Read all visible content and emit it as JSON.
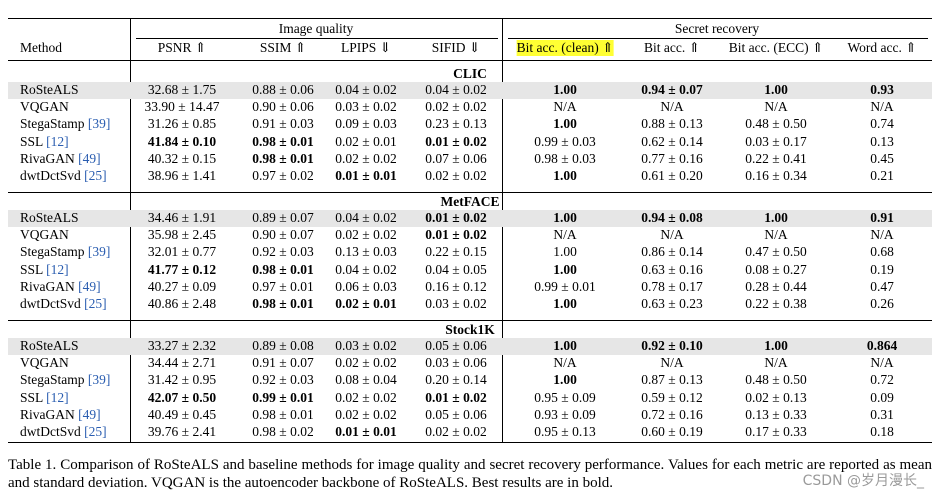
{
  "table": {
    "groups": [
      "Image quality",
      "Secret recovery"
    ],
    "columns": [
      {
        "text": "Method"
      },
      {
        "text": "PSNR ⇑"
      },
      {
        "text": "SSIM ⇑"
      },
      {
        "text": "LPIPS ⇓"
      },
      {
        "text": "SIFID ⇓"
      },
      {
        "text": "Bit acc. (clean) ⇑",
        "highlight": true
      },
      {
        "text": "Bit acc. ⇑"
      },
      {
        "text": "Bit acc. (ECC) ⇑"
      },
      {
        "text": "Word acc. ⇑"
      }
    ],
    "sections": [
      {
        "title": "CLIC",
        "rows": [
          {
            "method": "RoSteALS",
            "shaded": true,
            "values": [
              "32.68 ± 1.75",
              "0.88 ± 0.06",
              "0.04 ± 0.02",
              "0.04 ± 0.02",
              "1.00",
              "0.94 ± 0.07",
              "1.00",
              "0.93"
            ],
            "bold": [
              4,
              5,
              6,
              7
            ]
          },
          {
            "method": "VQGAN",
            "values": [
              "33.90 ± 14.47",
              "0.90 ± 0.06",
              "0.03 ± 0.02",
              "0.02 ± 0.02",
              "N/A",
              "N/A",
              "N/A",
              "N/A"
            ],
            "bold": []
          },
          {
            "method": "StegaStamp",
            "cite": "[39]",
            "values": [
              "31.26 ± 0.85",
              "0.91 ± 0.03",
              "0.09 ± 0.03",
              "0.23 ± 0.13",
              "1.00",
              "0.88 ± 0.13",
              "0.48 ± 0.50",
              "0.74"
            ],
            "bold": [
              4
            ]
          },
          {
            "method": "SSL",
            "cite": "[12]",
            "values": [
              "41.84 ± 0.10",
              "0.98 ± 0.01",
              "0.02 ± 0.01",
              "0.01 ± 0.02",
              "0.99 ± 0.03",
              "0.62 ± 0.14",
              "0.03 ± 0.17",
              "0.13"
            ],
            "bold": [
              0,
              1,
              3
            ]
          },
          {
            "method": "RivaGAN",
            "cite": "[49]",
            "values": [
              "40.32 ± 0.15",
              "0.98 ± 0.01",
              "0.02 ± 0.02",
              "0.07 ± 0.06",
              "0.98 ± 0.03",
              "0.77 ± 0.16",
              "0.22 ± 0.41",
              "0.45"
            ],
            "bold": [
              1
            ]
          },
          {
            "method": "dwtDctSvd",
            "cite": "[25]",
            "values": [
              "38.96 ± 1.41",
              "0.97 ± 0.02",
              "0.01 ± 0.01",
              "0.02 ± 0.02",
              "1.00",
              "0.61 ± 0.20",
              "0.16 ± 0.34",
              "0.21"
            ],
            "bold": [
              2,
              4
            ]
          }
        ]
      },
      {
        "title": "MetFACE",
        "rows": [
          {
            "method": "RoSteALS",
            "shaded": true,
            "values": [
              "34.46 ± 1.91",
              "0.89 ± 0.07",
              "0.04 ± 0.02",
              "0.01 ± 0.02",
              "1.00",
              "0.94 ± 0.08",
              "1.00",
              "0.91"
            ],
            "bold": [
              3,
              4,
              5,
              6,
              7
            ]
          },
          {
            "method": "VQGAN",
            "values": [
              "35.98 ± 2.45",
              "0.90 ± 0.07",
              "0.02 ± 0.02",
              "0.01 ± 0.02",
              "N/A",
              "N/A",
              "N/A",
              "N/A"
            ],
            "bold": [
              3
            ]
          },
          {
            "method": "StegaStamp",
            "cite": "[39]",
            "values": [
              "32.01 ± 0.77",
              "0.92 ± 0.03",
              "0.13 ± 0.03",
              "0.22 ± 0.15",
              "1.00",
              "0.86 ± 0.14",
              "0.47 ± 0.50",
              "0.68"
            ],
            "bold": []
          },
          {
            "method": "SSL",
            "cite": "[12]",
            "values": [
              "41.77 ± 0.12",
              "0.98 ± 0.01",
              "0.04 ± 0.02",
              "0.04 ± 0.05",
              "1.00",
              "0.63 ± 0.16",
              "0.08 ± 0.27",
              "0.19"
            ],
            "bold": [
              0,
              1,
              4
            ]
          },
          {
            "method": "RivaGAN",
            "cite": "[49]",
            "values": [
              "40.27 ± 0.09",
              "0.97 ± 0.01",
              "0.06 ± 0.03",
              "0.16 ± 0.12",
              "0.99 ± 0.01",
              "0.78 ± 0.17",
              "0.28 ± 0.44",
              "0.47"
            ],
            "bold": []
          },
          {
            "method": "dwtDctSvd",
            "cite": "[25]",
            "values": [
              "40.86 ± 2.48",
              "0.98 ± 0.01",
              "0.02 ± 0.01",
              "0.03 ± 0.02",
              "1.00",
              "0.63 ± 0.23",
              "0.22 ± 0.38",
              "0.26"
            ],
            "bold": [
              1,
              2,
              4
            ]
          }
        ]
      },
      {
        "title": "Stock1K",
        "rows": [
          {
            "method": "RoSteALS",
            "shaded": true,
            "values": [
              "33.27 ± 2.32",
              "0.89 ± 0.08",
              "0.03 ± 0.02",
              "0.05 ± 0.06",
              "1.00",
              "0.92 ± 0.10",
              "1.00",
              "0.864"
            ],
            "bold": [
              4,
              5,
              6,
              7
            ]
          },
          {
            "method": "VQGAN",
            "values": [
              "34.44 ± 2.71",
              "0.91 ± 0.07",
              "0.02 ± 0.02",
              "0.03 ± 0.06",
              "N/A",
              "N/A",
              "N/A",
              "N/A"
            ],
            "bold": []
          },
          {
            "method": "StegaStamp",
            "cite": "[39]",
            "values": [
              "31.42 ± 0.95",
              "0.92 ± 0.03",
              "0.08 ± 0.04",
              "0.20 ± 0.14",
              "1.00",
              "0.87 ± 0.13",
              "0.48 ± 0.50",
              "0.72"
            ],
            "bold": [
              4
            ]
          },
          {
            "method": "SSL",
            "cite": "[12]",
            "values": [
              "42.07 ± 0.50",
              "0.99 ± 0.01",
              "0.02 ± 0.02",
              "0.01 ± 0.02",
              "0.95 ± 0.09",
              "0.59 ± 0.12",
              "0.02 ± 0.13",
              "0.09"
            ],
            "bold": [
              0,
              1,
              3
            ]
          },
          {
            "method": "RivaGAN",
            "cite": "[49]",
            "values": [
              "40.49 ± 0.45",
              "0.98 ± 0.01",
              "0.02 ± 0.02",
              "0.05 ± 0.06",
              "0.93 ± 0.09",
              "0.72 ± 0.16",
              "0.13 ± 0.33",
              "0.31"
            ],
            "bold": []
          },
          {
            "method": "dwtDctSvd",
            "cite": "[25]",
            "values": [
              "39.76 ± 2.41",
              "0.98 ± 0.02",
              "0.01 ± 0.01",
              "0.02 ± 0.02",
              "0.95 ± 0.13",
              "0.60 ± 0.19",
              "0.17 ± 0.33",
              "0.18"
            ],
            "bold": [
              2
            ]
          }
        ]
      }
    ]
  },
  "caption": "Table 1. Comparison of RoSteALS and baseline methods for image quality and secret recovery performance. Values for each metric are reported as mean and standard deviation. VQGAN is the autoencoder backbone of RoSteALS. Best results are in bold.",
  "watermark": "CSDN @岁月漫长_"
}
